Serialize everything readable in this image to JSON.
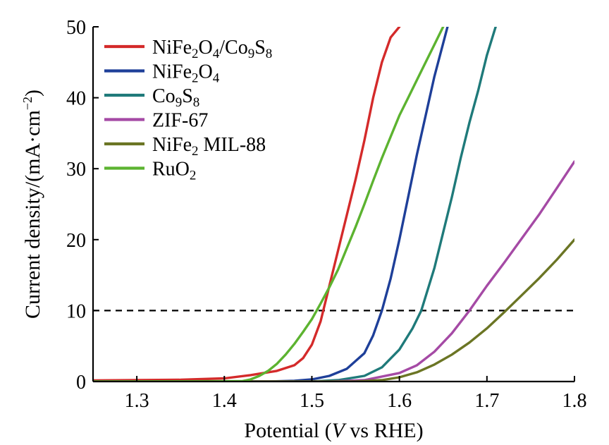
{
  "chart_data": {
    "type": "line",
    "xlabel": {
      "prefix": "Potential (",
      "italic": "V",
      "suffix": " vs RHE)"
    },
    "ylabel": {
      "text": "Current density/(mA·cm",
      "sup": "−2",
      "close": ")"
    },
    "xlim": [
      1.25,
      1.8
    ],
    "ylim": [
      0,
      50
    ],
    "x_ticks": [
      1.3,
      1.4,
      1.5,
      1.6,
      1.7,
      1.8
    ],
    "x_tick_labels": [
      "1.3",
      "1.4",
      "1.5",
      "1.6",
      "1.7",
      "1.8"
    ],
    "y_ticks": [
      0,
      10,
      20,
      30,
      40,
      50
    ],
    "y_tick_labels": [
      "0",
      "10",
      "20",
      "30",
      "40",
      "50"
    ],
    "reference_line": {
      "y": 10,
      "style": "dashed",
      "color": "#000000"
    },
    "legend_position": "top-left",
    "series": [
      {
        "name": [
          [
            "NiFe",
            ""
          ],
          [
            "2",
            "sub"
          ],
          [
            "O",
            ""
          ],
          [
            "4",
            "sub"
          ],
          [
            "/Co",
            ""
          ],
          [
            "9",
            "sub"
          ],
          [
            "S",
            ""
          ],
          [
            "8",
            "sub"
          ]
        ],
        "label": "NiFe2O4/Co9S8",
        "color": "#d42a2a",
        "points": [
          [
            1.25,
            0.15
          ],
          [
            1.3,
            0.2
          ],
          [
            1.35,
            0.25
          ],
          [
            1.4,
            0.45
          ],
          [
            1.43,
            0.9
          ],
          [
            1.46,
            1.5
          ],
          [
            1.48,
            2.3
          ],
          [
            1.49,
            3.3
          ],
          [
            1.5,
            5.2
          ],
          [
            1.51,
            8.5
          ],
          [
            1.52,
            13.5
          ],
          [
            1.53,
            18.5
          ],
          [
            1.54,
            23.5
          ],
          [
            1.55,
            28.5
          ],
          [
            1.56,
            34
          ],
          [
            1.57,
            40
          ],
          [
            1.58,
            45
          ],
          [
            1.59,
            48.5
          ],
          [
            1.6,
            50
          ]
        ]
      },
      {
        "name": [
          [
            "NiFe",
            ""
          ],
          [
            "2",
            "sub"
          ],
          [
            "O",
            ""
          ],
          [
            "4",
            "sub"
          ]
        ],
        "label": "NiFe2O4",
        "color": "#1e3f99",
        "points": [
          [
            1.25,
            0
          ],
          [
            1.45,
            0
          ],
          [
            1.48,
            0.1
          ],
          [
            1.5,
            0.3
          ],
          [
            1.52,
            0.8
          ],
          [
            1.54,
            1.8
          ],
          [
            1.56,
            4
          ],
          [
            1.57,
            6.5
          ],
          [
            1.58,
            10
          ],
          [
            1.59,
            14.5
          ],
          [
            1.6,
            20
          ],
          [
            1.61,
            26
          ],
          [
            1.62,
            32
          ],
          [
            1.63,
            37.5
          ],
          [
            1.64,
            43
          ],
          [
            1.655,
            50
          ]
        ]
      },
      {
        "name": [
          [
            "Co",
            ""
          ],
          [
            "9",
            "sub"
          ],
          [
            "S",
            ""
          ],
          [
            "8",
            "sub"
          ]
        ],
        "label": "Co9S8",
        "color": "#1f7a7a",
        "points": [
          [
            1.25,
            0
          ],
          [
            1.5,
            0
          ],
          [
            1.53,
            0.2
          ],
          [
            1.56,
            0.8
          ],
          [
            1.58,
            2
          ],
          [
            1.6,
            4.5
          ],
          [
            1.615,
            7.5
          ],
          [
            1.625,
            10
          ],
          [
            1.64,
            16
          ],
          [
            1.65,
            21
          ],
          [
            1.66,
            26
          ],
          [
            1.67,
            31.5
          ],
          [
            1.68,
            36.5
          ],
          [
            1.69,
            41
          ],
          [
            1.7,
            46
          ],
          [
            1.71,
            50
          ]
        ]
      },
      {
        "name": [
          [
            "ZIF-67",
            ""
          ]
        ],
        "label": "ZIF-67",
        "color": "#a54aa5",
        "points": [
          [
            1.25,
            0
          ],
          [
            1.52,
            0
          ],
          [
            1.56,
            0.2
          ],
          [
            1.6,
            1.2
          ],
          [
            1.62,
            2.3
          ],
          [
            1.64,
            4.2
          ],
          [
            1.66,
            6.8
          ],
          [
            1.68,
            10
          ],
          [
            1.7,
            13.5
          ],
          [
            1.72,
            16.8
          ],
          [
            1.74,
            20.2
          ],
          [
            1.76,
            23.6
          ],
          [
            1.78,
            27.3
          ],
          [
            1.8,
            31
          ]
        ]
      },
      {
        "name": [
          [
            "NiFe",
            ""
          ],
          [
            "2",
            "sub"
          ],
          [
            " MIL-88",
            ""
          ]
        ],
        "label": "NiFe2 MIL-88",
        "color": "#6b7524",
        "points": [
          [
            1.25,
            0
          ],
          [
            1.55,
            0
          ],
          [
            1.58,
            0.2
          ],
          [
            1.6,
            0.6
          ],
          [
            1.62,
            1.3
          ],
          [
            1.64,
            2.4
          ],
          [
            1.66,
            3.8
          ],
          [
            1.68,
            5.5
          ],
          [
            1.7,
            7.5
          ],
          [
            1.72,
            9.8
          ],
          [
            1.74,
            12.2
          ],
          [
            1.76,
            14.6
          ],
          [
            1.78,
            17.2
          ],
          [
            1.8,
            20
          ]
        ]
      },
      {
        "name": [
          [
            "RuO",
            ""
          ],
          [
            "2",
            "sub"
          ]
        ],
        "label": "RuO2",
        "color": "#5cb330",
        "points": [
          [
            1.25,
            0
          ],
          [
            1.42,
            0.05
          ],
          [
            1.43,
            0.3
          ],
          [
            1.44,
            0.8
          ],
          [
            1.45,
            1.5
          ],
          [
            1.46,
            2.5
          ],
          [
            1.47,
            3.8
          ],
          [
            1.48,
            5.3
          ],
          [
            1.49,
            7
          ],
          [
            1.5,
            8.8
          ],
          [
            1.51,
            11
          ],
          [
            1.52,
            13.3
          ],
          [
            1.53,
            15.8
          ],
          [
            1.54,
            18.8
          ],
          [
            1.55,
            21.8
          ],
          [
            1.56,
            25
          ],
          [
            1.57,
            28.3
          ],
          [
            1.58,
            31.5
          ],
          [
            1.59,
            34.5
          ],
          [
            1.6,
            37.5
          ],
          [
            1.61,
            40
          ],
          [
            1.62,
            42.5
          ],
          [
            1.63,
            45
          ],
          [
            1.64,
            47.5
          ],
          [
            1.65,
            50
          ]
        ]
      }
    ]
  }
}
